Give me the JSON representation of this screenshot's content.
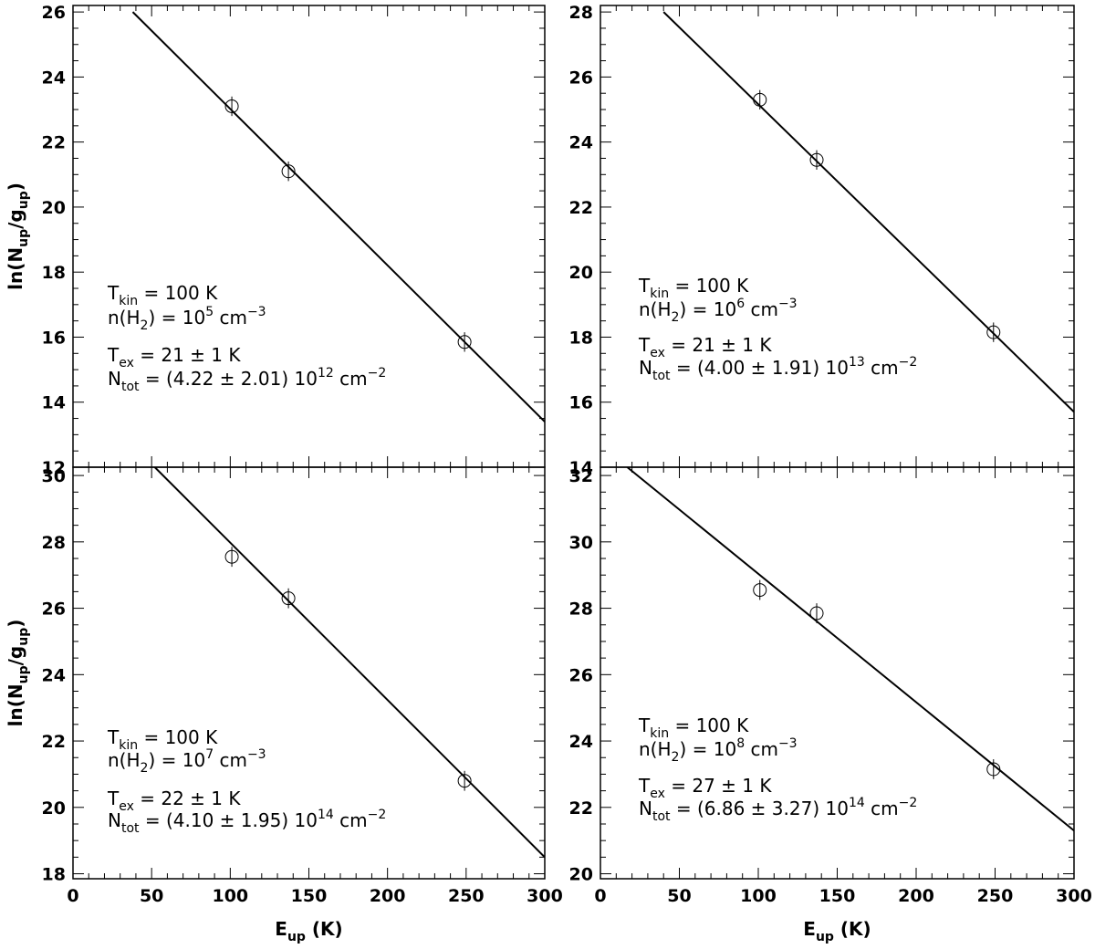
{
  "chart_data": [
    {
      "type": "scatter",
      "ylabel": [
        {
          "text": "ln(N"
        },
        {
          "sub": "up"
        },
        {
          "text": "/g"
        },
        {
          "sub": "up"
        },
        {
          "text": ")"
        }
      ],
      "x": [
        101,
        137,
        249
      ],
      "values": [
        23.1,
        21.1,
        15.85
      ],
      "errors": [
        0.3,
        0.3,
        0.3
      ],
      "fit": {
        "x": [
          38,
          300
        ],
        "y": [
          26.0,
          13.4
        ]
      },
      "xlim": [
        0,
        300
      ],
      "xticks": [
        0,
        50,
        100,
        150,
        200,
        250,
        300
      ],
      "show_xtick_labels": false,
      "ylim": [
        12,
        26.2
      ],
      "yticks": [
        12,
        14,
        16,
        18,
        20,
        22,
        24,
        26
      ],
      "annotation": [
        [
          {
            "text": "T"
          },
          {
            "sub": "kin"
          },
          {
            "text": " = 100 K"
          }
        ],
        [
          {
            "text": "n(H"
          },
          {
            "sub": "2"
          },
          {
            "text": ") = 10"
          },
          {
            "sup": "5"
          },
          {
            "text": " cm"
          },
          {
            "sup": "−3"
          }
        ],
        [
          {
            "text": "T"
          },
          {
            "sub": "ex"
          },
          {
            "text": " = 21 ± 1 K"
          }
        ],
        [
          {
            "text": "N"
          },
          {
            "sub": "tot"
          },
          {
            "text": " = (4.22 ± 2.01) 10"
          },
          {
            "sup": "12"
          },
          {
            "text": " cm"
          },
          {
            "sup": "−2"
          }
        ]
      ]
    },
    {
      "type": "scatter",
      "x": [
        101,
        137,
        249
      ],
      "values": [
        25.3,
        23.45,
        18.15
      ],
      "errors": [
        0.3,
        0.3,
        0.3
      ],
      "fit": {
        "x": [
          40,
          300
        ],
        "y": [
          28.0,
          15.7
        ]
      },
      "xlim": [
        0,
        300
      ],
      "xticks": [
        0,
        50,
        100,
        150,
        200,
        250,
        300
      ],
      "show_xtick_labels": false,
      "ylim": [
        14,
        28.2
      ],
      "yticks": [
        14,
        16,
        18,
        20,
        22,
        24,
        26,
        28
      ],
      "annotation": [
        [
          {
            "text": "T"
          },
          {
            "sub": "kin"
          },
          {
            "text": " = 100 K"
          }
        ],
        [
          {
            "text": "n(H"
          },
          {
            "sub": "2"
          },
          {
            "text": ") = 10"
          },
          {
            "sup": "6"
          },
          {
            "text": " cm"
          },
          {
            "sup": "−3"
          }
        ],
        [
          {
            "text": "T"
          },
          {
            "sub": "ex"
          },
          {
            "text": " = 21 ± 1 K"
          }
        ],
        [
          {
            "text": "N"
          },
          {
            "sub": "tot"
          },
          {
            "text": " = (4.00 ± 1.91) 10"
          },
          {
            "sup": "13"
          },
          {
            "text": " cm"
          },
          {
            "sup": "−2"
          }
        ]
      ]
    },
    {
      "type": "scatter",
      "ylabel": [
        {
          "text": "ln(N"
        },
        {
          "sub": "up"
        },
        {
          "text": "/g"
        },
        {
          "sub": "up"
        },
        {
          "text": ")"
        }
      ],
      "xlabel": [
        {
          "text": "E"
        },
        {
          "sub": "up"
        },
        {
          "text": " (K)"
        }
      ],
      "x": [
        101,
        137,
        249
      ],
      "values": [
        27.55,
        26.3,
        20.8
      ],
      "errors": [
        0.3,
        0.3,
        0.3
      ],
      "fit": {
        "x": [
          52,
          300
        ],
        "y": [
          30.25,
          18.5
        ]
      },
      "xlim": [
        0,
        300
      ],
      "xticks": [
        0,
        50,
        100,
        150,
        200,
        250,
        300
      ],
      "show_xtick_labels": true,
      "ylim": [
        17.85,
        30.25
      ],
      "yticks": [
        18,
        20,
        22,
        24,
        26,
        28,
        30
      ],
      "annotation": [
        [
          {
            "text": "T"
          },
          {
            "sub": "kin"
          },
          {
            "text": " = 100 K"
          }
        ],
        [
          {
            "text": "n(H"
          },
          {
            "sub": "2"
          },
          {
            "text": ") = 10"
          },
          {
            "sup": "7"
          },
          {
            "text": " cm"
          },
          {
            "sup": "−3"
          }
        ],
        [
          {
            "text": "T"
          },
          {
            "sub": "ex"
          },
          {
            "text": " = 22 ± 1 K"
          }
        ],
        [
          {
            "text": "N"
          },
          {
            "sub": "tot"
          },
          {
            "text": " = (4.10 ± 1.95) 10"
          },
          {
            "sup": "14"
          },
          {
            "text": " cm"
          },
          {
            "sup": "−2"
          }
        ]
      ]
    },
    {
      "type": "scatter",
      "xlabel": [
        {
          "text": "E"
        },
        {
          "sub": "up"
        },
        {
          "text": " (K)"
        }
      ],
      "x": [
        101,
        137,
        249
      ],
      "values": [
        28.55,
        27.85,
        23.15
      ],
      "errors": [
        0.3,
        0.3,
        0.3
      ],
      "fit": {
        "x": [
          17,
          300
        ],
        "y": [
          32.25,
          21.3
        ]
      },
      "xlim": [
        0,
        300
      ],
      "xticks": [
        0,
        50,
        100,
        150,
        200,
        250,
        300
      ],
      "show_xtick_labels": true,
      "ylim": [
        19.85,
        32.25
      ],
      "yticks": [
        20,
        22,
        24,
        26,
        28,
        30,
        32
      ],
      "annotation": [
        [
          {
            "text": "T"
          },
          {
            "sub": "kin"
          },
          {
            "text": " = 100 K"
          }
        ],
        [
          {
            "text": "n(H"
          },
          {
            "sub": "2"
          },
          {
            "text": ") = 10"
          },
          {
            "sup": "8"
          },
          {
            "text": " cm"
          },
          {
            "sup": "−3"
          }
        ],
        [
          {
            "text": "T"
          },
          {
            "sub": "ex"
          },
          {
            "text": " = 27 ± 1 K"
          }
        ],
        [
          {
            "text": "N"
          },
          {
            "sub": "tot"
          },
          {
            "text": " = (6.86 ± 3.27) 10"
          },
          {
            "sup": "14"
          },
          {
            "text": " cm"
          },
          {
            "sup": "−2"
          }
        ]
      ]
    }
  ]
}
